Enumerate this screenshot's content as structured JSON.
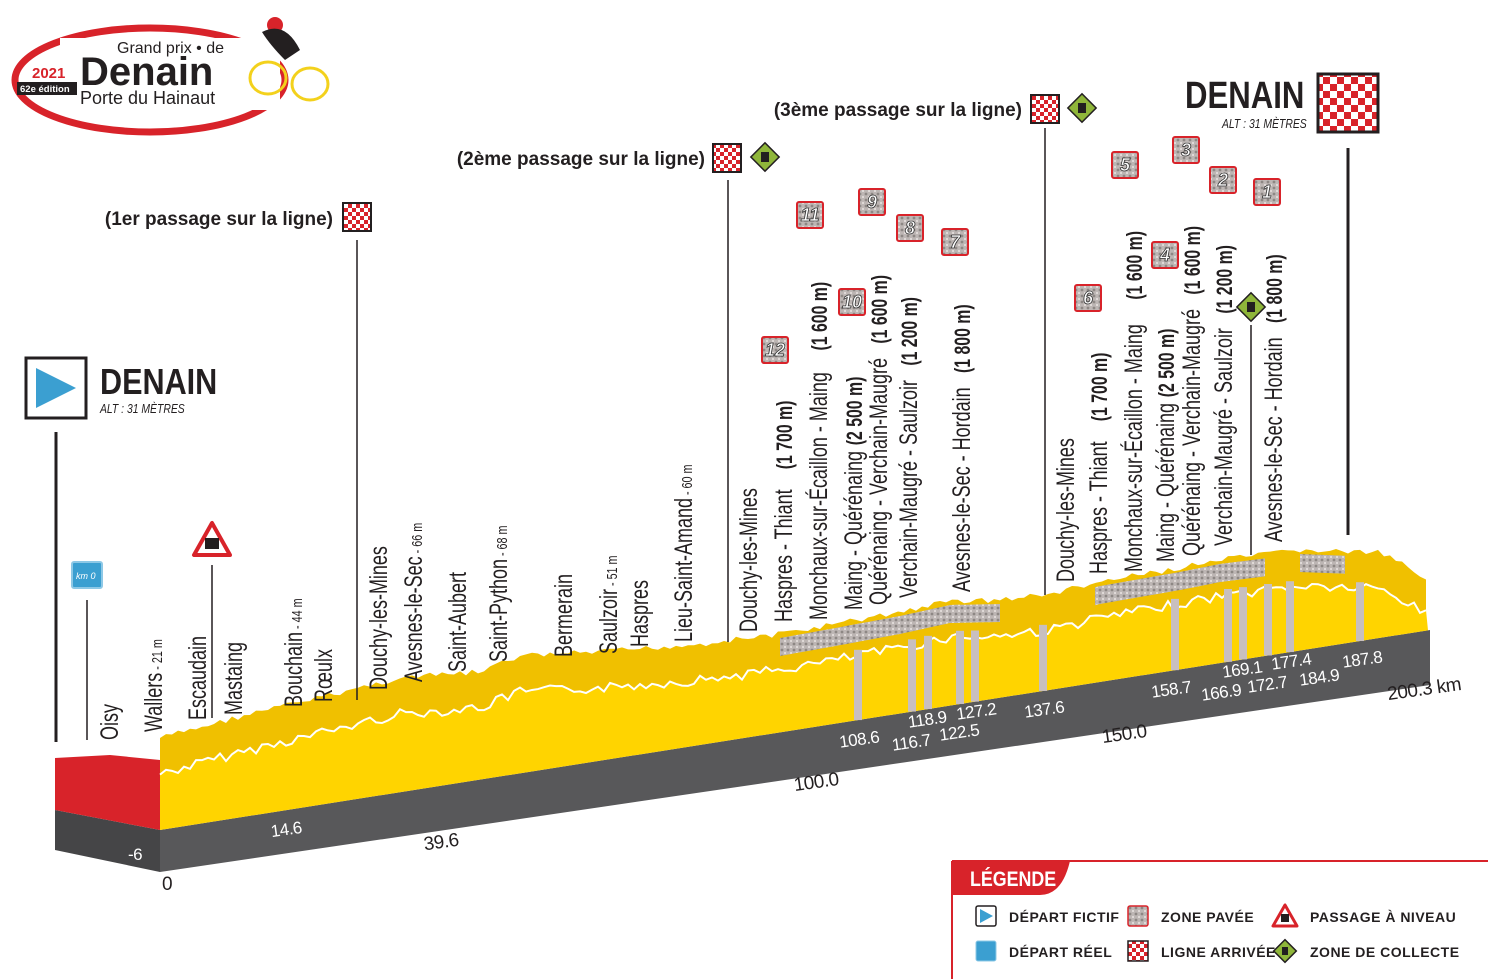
{
  "logo": {
    "line1": "Grand prix • de",
    "line2": "Denain",
    "line3": "Porte du Hainaut",
    "year": "2021",
    "edition": "62e édition"
  },
  "start": {
    "city": "DENAIN",
    "altitude": "ALT : 31 MÈTRES",
    "icon": "depart-fictif-icon",
    "km0_label": "km 0"
  },
  "finish": {
    "city": "DENAIN",
    "altitude": "ALT : 31 MÈTRES",
    "icon": "checkered-flag-icon"
  },
  "passages": [
    {
      "label": "(1er passage sur la ligne)",
      "ordinal": "1",
      "sup": "er",
      "text": " passage sur la ligne)"
    },
    {
      "label": "(2ème passage sur la ligne)",
      "ordinal": "2",
      "sup": "ème",
      "text": " passage sur la ligne)"
    },
    {
      "label": "(3ème passage sur la ligne)",
      "ordinal": "3",
      "sup": "ème",
      "text": " passage sur la ligne)"
    }
  ],
  "towns": [
    {
      "name": "Oisy",
      "alt": ""
    },
    {
      "name": "Wallers",
      "alt": " - 21 m"
    },
    {
      "name": "Escaudain",
      "alt": ""
    },
    {
      "name": "Mastaing",
      "alt": ""
    },
    {
      "name": "Bouchain",
      "alt": " - 44 m"
    },
    {
      "name": "Rœulx",
      "alt": ""
    },
    {
      "name": "Douchy-les-Mines",
      "alt": ""
    },
    {
      "name": "Avesnes-le-Sec",
      "alt": " - 66 m"
    },
    {
      "name": "Saint-Aubert",
      "alt": ""
    },
    {
      "name": "Saint-Python",
      "alt": " - 68 m"
    },
    {
      "name": "Bermerain",
      "alt": ""
    },
    {
      "name": "Saulzoir",
      "alt": " - 51 m"
    },
    {
      "name": "Haspres",
      "alt": ""
    },
    {
      "name": "Lieu-Saint-Amand",
      "alt": " - 60 m"
    },
    {
      "name": "Douchy-les-Mines",
      "alt": ""
    },
    {
      "name": "Douchy-les-Mines",
      "alt": ""
    }
  ],
  "sectors": [
    {
      "number": "12",
      "name": "Haspres - Thiant",
      "length": "(1 700 m)"
    },
    {
      "number": "11",
      "name": "Monchaux-sur-Écaillon - Maing",
      "length": "(1 600 m)"
    },
    {
      "number": "10",
      "name": "Maing - Quérénaing",
      "length": "(2 500 m)"
    },
    {
      "number": "9",
      "name": "Quérénaing - Verchain-Maugré",
      "length": "(1 600 m)"
    },
    {
      "number": "8",
      "name": "Verchain-Maugré - Saulzoir",
      "length": "(1 200 m)"
    },
    {
      "number": "7",
      "name": "Avesnes-le-Sec - Hordain",
      "length": "(1 800 m)"
    },
    {
      "number": "6",
      "name": "Haspres - Thiant",
      "length": "(1 700 m)"
    },
    {
      "number": "5",
      "name": "Monchaux-sur-Écaillon - Maing",
      "length": "(1 600 m)"
    },
    {
      "number": "4",
      "name": "Maing - Quérénaing",
      "length": "(2 500 m)"
    },
    {
      "number": "3",
      "name": "Quérénaing - Verchain-Maugré",
      "length": "(1 600 m)"
    },
    {
      "number": "2",
      "name": "Verchain-Maugré - Saulzoir",
      "length": "(1 200 m)"
    },
    {
      "number": "1",
      "name": "Avesnes-le-Sec - Hordain",
      "length": "(1 800 m)"
    }
  ],
  "km_markers": [
    "-6",
    "0",
    "14.6",
    "39.6",
    "100.0",
    "108.6",
    "116.7",
    "118.9",
    "122.5",
    "127.2",
    "137.6",
    "150.0",
    "158.7",
    "166.9",
    "169.1",
    "172.7",
    "177.4",
    "184.9",
    "187.8",
    "200.3 km"
  ],
  "km_highlight": "184.9",
  "legend": {
    "title": "LÉGENDE",
    "items": [
      {
        "label": "DÉPART FICTIF",
        "icon": "depart-fictif-icon"
      },
      {
        "label": "DÉPART RÉEL",
        "icon": "km0-icon"
      },
      {
        "label": "ZONE PAVÉE",
        "icon": "cobblestone-icon"
      },
      {
        "label": "LIGNE ARRIVÉE",
        "icon": "checkered-flag-icon"
      },
      {
        "label": "PASSAGE À NIVEAU",
        "icon": "level-crossing-icon"
      },
      {
        "label": "ZONE DE COLLECTE",
        "icon": "waste-collection-icon"
      }
    ]
  },
  "colors": {
    "profile": "#ffd400",
    "ridge": "#f0c000",
    "base": "#58585a",
    "red": "#d8232a",
    "blue": "#3b9fd1",
    "green": "#8fb63a",
    "cobble": "#c8bfbf"
  }
}
